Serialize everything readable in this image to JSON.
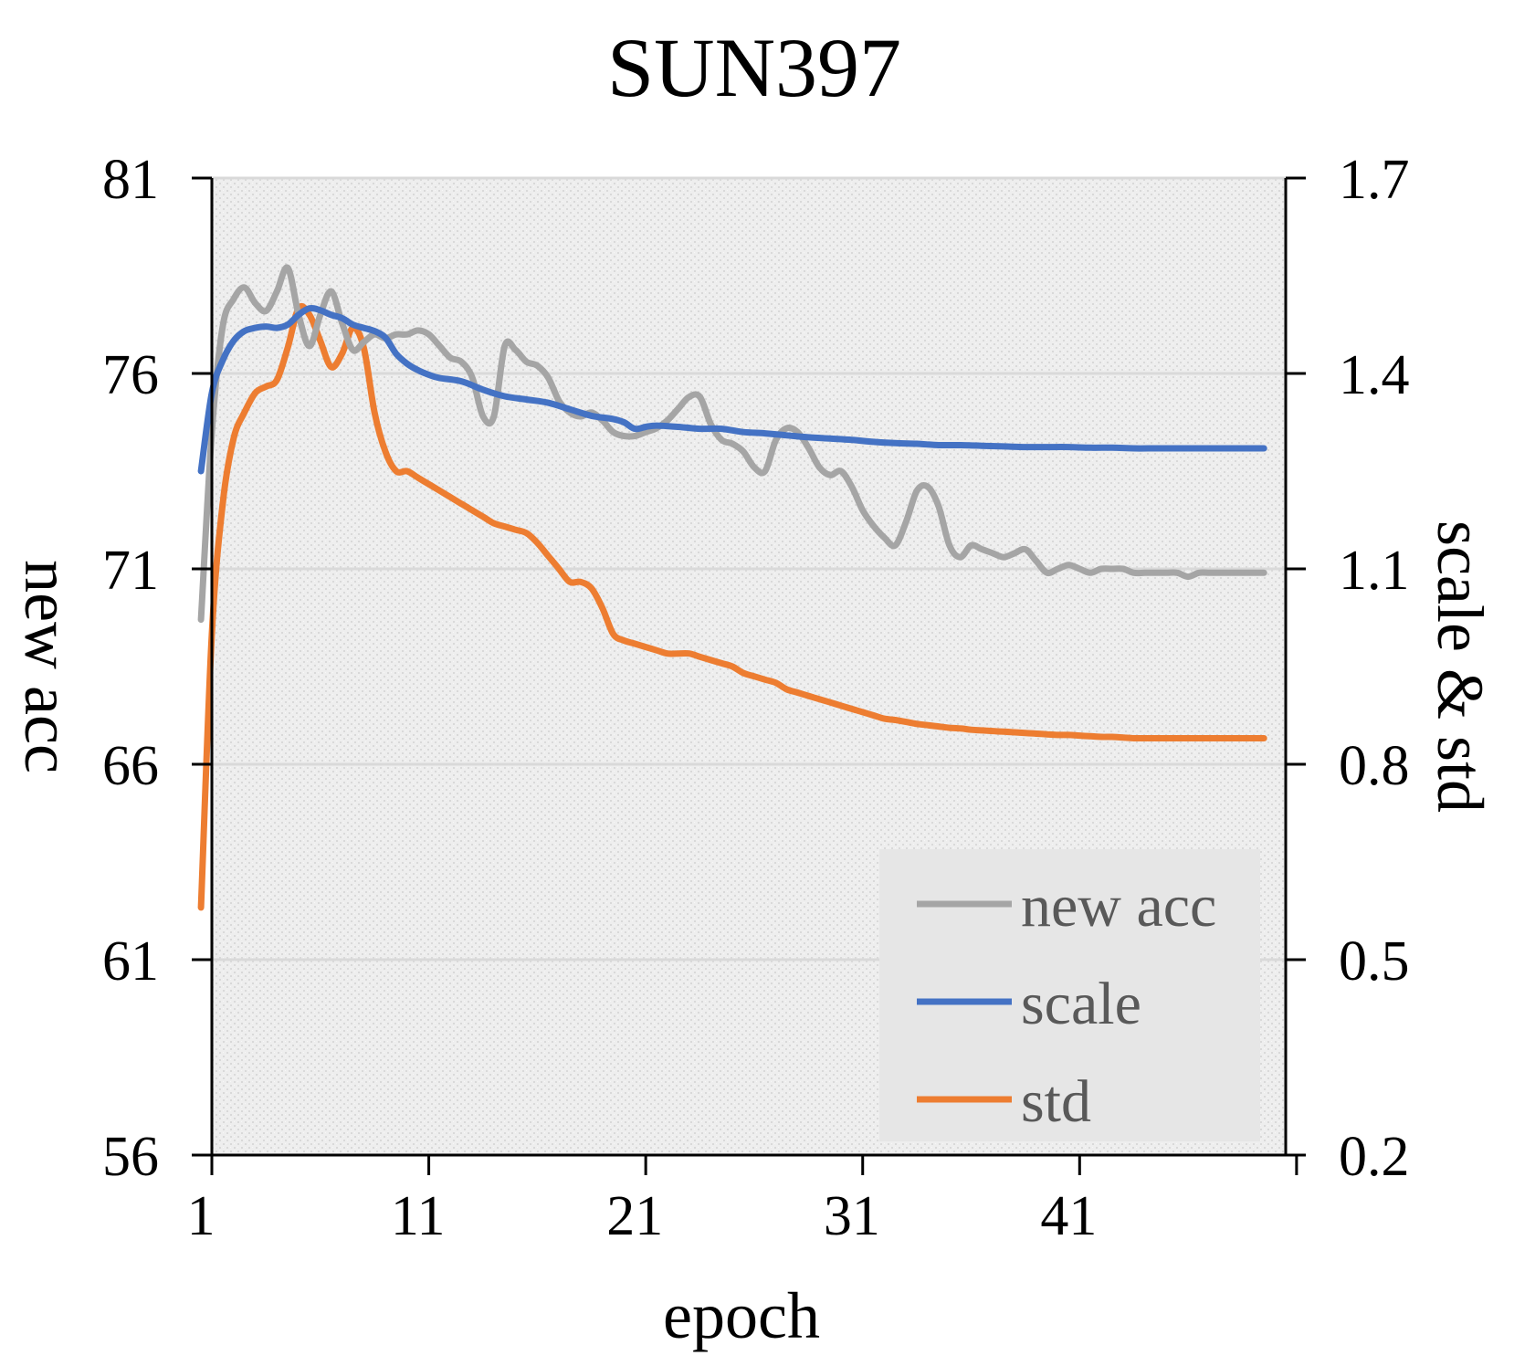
{
  "chart_data": {
    "type": "line",
    "title": "SUN397",
    "xlabel": "epoch",
    "ylabel_left": "new acc",
    "ylabel_right": "scale & std",
    "x_ticks": [
      1,
      11,
      21,
      31,
      41
    ],
    "x_range": [
      1,
      50
    ],
    "y_left_ticks": [
      56,
      61,
      66,
      71,
      76,
      81
    ],
    "y_left_range": [
      56,
      81
    ],
    "y_right_ticks": [
      "0.2",
      "0.5",
      "0.8",
      "1.1",
      "1.4",
      "1.7"
    ],
    "y_right_range": [
      0.2,
      1.7
    ],
    "grid": "horizontal",
    "legend_position": "bottom-right",
    "series": [
      {
        "name": "new acc",
        "axis": "left",
        "color": "#a5a5a5",
        "x": [
          1,
          1.5,
          2,
          2.5,
          3,
          3.5,
          4,
          4.5,
          5,
          5.5,
          6,
          6.5,
          7,
          7.5,
          8,
          8.5,
          9,
          9.5,
          10,
          10.5,
          11,
          11.5,
          12,
          12.5,
          13,
          13.5,
          14,
          14.5,
          15,
          15.5,
          16,
          16.5,
          17,
          17.5,
          18,
          18.5,
          19,
          19.5,
          20,
          20.5,
          21,
          21.5,
          22,
          22.5,
          23,
          23.5,
          24,
          24.5,
          25,
          25.5,
          26,
          26.5,
          27,
          27.5,
          28,
          28.5,
          29,
          29.5,
          30,
          30.5,
          31,
          31.5,
          32,
          32.5,
          33,
          33.5,
          34,
          34.5,
          35,
          35.5,
          36,
          36.5,
          37,
          37.5,
          38,
          38.5,
          39,
          39.5,
          40,
          40.5,
          41,
          41.5,
          42,
          42.5,
          43,
          43.5,
          44,
          44.5,
          45,
          45.5,
          46,
          46.5,
          47,
          47.5,
          48,
          48.5,
          49,
          49.5,
          50
        ],
        "values": [
          69.7,
          74.5,
          77.2,
          77.9,
          78.2,
          77.8,
          77.6,
          78.1,
          78.7,
          77.5,
          76.7,
          77.5,
          78.1,
          77.3,
          76.6,
          76.8,
          77.0,
          76.9,
          77.0,
          77.0,
          77.1,
          77.0,
          76.7,
          76.4,
          76.3,
          75.9,
          74.9,
          74.9,
          76.7,
          76.6,
          76.3,
          76.2,
          75.9,
          75.3,
          75.0,
          74.9,
          75.0,
          74.8,
          74.5,
          74.4,
          74.4,
          74.5,
          74.6,
          74.8,
          75.1,
          75.4,
          75.4,
          74.7,
          74.3,
          74.2,
          74.0,
          73.6,
          73.5,
          74.3,
          74.6,
          74.5,
          74.1,
          73.6,
          73.4,
          73.5,
          73.1,
          72.5,
          72.1,
          71.8,
          71.6,
          72.2,
          73.0,
          73.1,
          72.6,
          71.6,
          71.3,
          71.6,
          71.5,
          71.4,
          71.3,
          71.4,
          71.5,
          71.2,
          70.9,
          71.0,
          71.1,
          71.0,
          70.9,
          71.0,
          71.0,
          71.0,
          70.9,
          70.9,
          70.9,
          70.9,
          70.9,
          70.8,
          70.9,
          70.9,
          70.9,
          70.9,
          70.9,
          70.9,
          70.9
        ]
      },
      {
        "name": "scale",
        "axis": "right",
        "color": "#4472c4",
        "x": [
          1,
          1.5,
          2,
          2.5,
          3,
          3.5,
          4,
          4.5,
          5,
          5.5,
          6,
          6.5,
          7,
          7.5,
          8,
          8.5,
          9,
          9.5,
          10,
          10.5,
          11,
          11.5,
          12,
          13,
          14,
          15,
          16,
          17,
          18,
          19,
          20,
          20.5,
          21,
          21.5,
          22,
          23,
          24,
          25,
          26,
          27,
          28,
          29,
          30,
          31,
          32,
          33,
          34,
          35,
          36,
          37,
          38,
          39,
          40,
          41,
          42,
          43,
          44,
          45,
          46,
          47,
          48,
          49,
          50
        ],
        "values": [
          1.25,
          1.37,
          1.42,
          1.45,
          1.465,
          1.47,
          1.472,
          1.47,
          1.475,
          1.49,
          1.5,
          1.497,
          1.49,
          1.485,
          1.475,
          1.47,
          1.465,
          1.455,
          1.43,
          1.415,
          1.405,
          1.398,
          1.393,
          1.388,
          1.375,
          1.365,
          1.36,
          1.355,
          1.345,
          1.335,
          1.33,
          1.325,
          1.315,
          1.318,
          1.32,
          1.318,
          1.315,
          1.315,
          1.31,
          1.308,
          1.305,
          1.302,
          1.3,
          1.298,
          1.295,
          1.293,
          1.292,
          1.29,
          1.29,
          1.289,
          1.288,
          1.287,
          1.287,
          1.287,
          1.286,
          1.286,
          1.285,
          1.285,
          1.285,
          1.285,
          1.285,
          1.285,
          1.285
        ]
      },
      {
        "name": "std",
        "axis": "right",
        "color": "#ed7d31",
        "x": [
          1,
          1.5,
          2,
          2.5,
          3,
          3.5,
          4,
          4.5,
          5,
          5.5,
          6,
          6.5,
          7,
          7.5,
          8,
          8.5,
          9,
          9.5,
          10,
          10.5,
          11,
          11.5,
          12,
          12.5,
          13,
          13.5,
          14,
          14.5,
          15,
          15.5,
          16,
          16.5,
          17,
          17.5,
          18,
          18.5,
          19,
          19.5,
          20,
          20.5,
          21,
          21.5,
          22,
          22.5,
          23,
          23.5,
          24,
          24.5,
          25,
          25.5,
          26,
          26.5,
          27,
          27.5,
          28,
          28.5,
          29,
          29.5,
          30,
          30.5,
          31,
          31.5,
          32,
          32.5,
          33,
          33.5,
          34,
          34.5,
          35,
          35.5,
          36,
          36.5,
          37,
          37.5,
          38,
          38.5,
          39,
          39.5,
          40,
          40.5,
          41,
          41.5,
          42,
          42.5,
          43,
          43.5,
          44,
          44.5,
          45,
          45.5,
          46,
          46.5,
          47,
          47.5,
          48,
          48.5,
          49,
          49.5,
          50
        ],
        "values": [
          0.58,
          1.0,
          1.2,
          1.3,
          1.34,
          1.37,
          1.38,
          1.39,
          1.44,
          1.5,
          1.49,
          1.45,
          1.41,
          1.43,
          1.47,
          1.44,
          1.34,
          1.28,
          1.25,
          1.25,
          1.24,
          1.23,
          1.22,
          1.21,
          1.2,
          1.19,
          1.18,
          1.17,
          1.165,
          1.16,
          1.155,
          1.14,
          1.12,
          1.1,
          1.08,
          1.08,
          1.07,
          1.04,
          1.0,
          0.99,
          0.985,
          0.98,
          0.975,
          0.97,
          0.97,
          0.97,
          0.965,
          0.96,
          0.955,
          0.95,
          0.94,
          0.935,
          0.93,
          0.925,
          0.915,
          0.91,
          0.905,
          0.9,
          0.895,
          0.89,
          0.885,
          0.88,
          0.875,
          0.87,
          0.868,
          0.865,
          0.862,
          0.86,
          0.858,
          0.856,
          0.855,
          0.853,
          0.852,
          0.851,
          0.85,
          0.849,
          0.848,
          0.847,
          0.846,
          0.845,
          0.845,
          0.844,
          0.843,
          0.842,
          0.842,
          0.841,
          0.84,
          0.84,
          0.84,
          0.84,
          0.84,
          0.84,
          0.84,
          0.84,
          0.84,
          0.84,
          0.84,
          0.84,
          0.84
        ]
      }
    ]
  }
}
